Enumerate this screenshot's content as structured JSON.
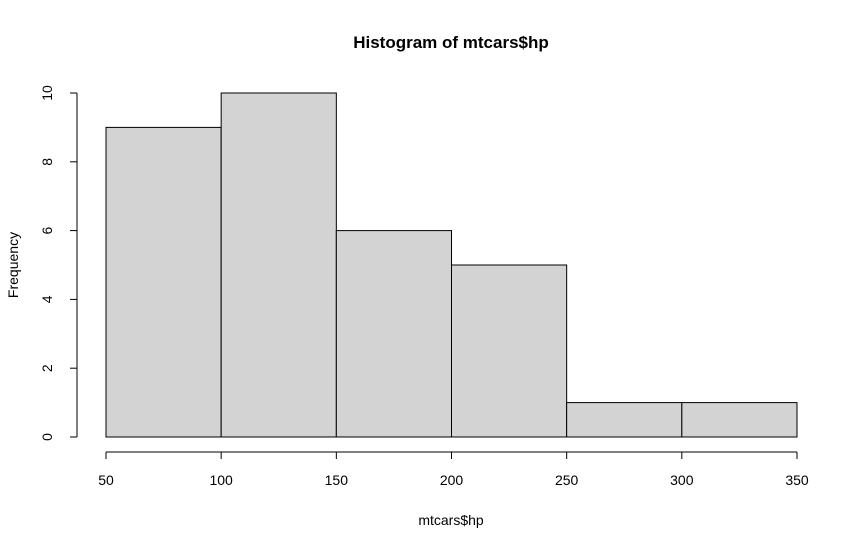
{
  "chart_data": {
    "type": "bar",
    "title": "Histogram of mtcars$hp",
    "xlabel": "mtcars$hp",
    "ylabel": "Frequency",
    "bins": [
      {
        "start": 50,
        "end": 100,
        "count": 9
      },
      {
        "start": 100,
        "end": 150,
        "count": 10
      },
      {
        "start": 150,
        "end": 200,
        "count": 6
      },
      {
        "start": 200,
        "end": 250,
        "count": 5
      },
      {
        "start": 250,
        "end": 300,
        "count": 1
      },
      {
        "start": 300,
        "end": 350,
        "count": 1
      }
    ],
    "xlim": [
      50,
      350
    ],
    "ylim": [
      0,
      10
    ],
    "xticks": [
      50,
      100,
      150,
      200,
      250,
      300,
      350
    ],
    "yticks": [
      0,
      2,
      4,
      6,
      8,
      10
    ],
    "bar_fill": "#d3d3d3",
    "bar_stroke": "#000000",
    "grid": false,
    "legend": "none"
  }
}
